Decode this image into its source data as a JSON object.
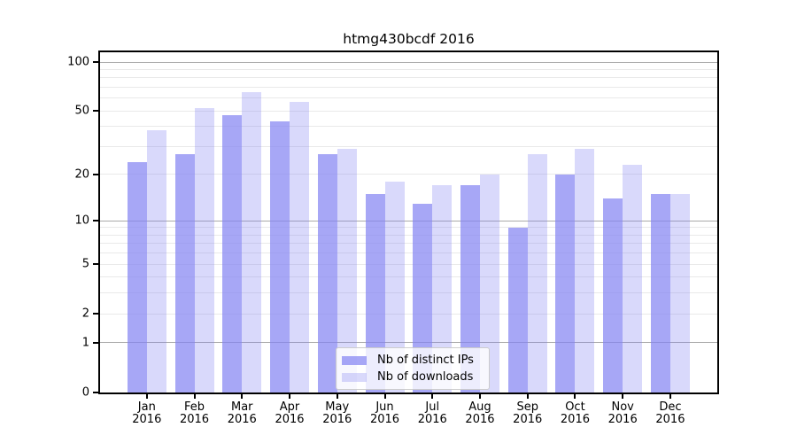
{
  "title": "htmg430bcdf 2016",
  "chart_data": {
    "type": "bar",
    "title": "htmg430bcdf 2016",
    "categories": [
      "Jan 2016",
      "Feb 2016",
      "Mar 2016",
      "Apr 2016",
      "May 2016",
      "Jun 2016",
      "Jul 2016",
      "Aug 2016",
      "Sep 2016",
      "Oct 2016",
      "Nov 2016",
      "Dec 2016"
    ],
    "series": [
      {
        "name": "Nb of distinct IPs",
        "color": "rgba(130,130,242,0.70)",
        "values": [
          24,
          27,
          47,
          43,
          27,
          15,
          13,
          17,
          9,
          20,
          14,
          15
        ]
      },
      {
        "name": "Nb of downloads",
        "color": "rgba(130,130,242,0.30)",
        "values": [
          38,
          52,
          65,
          57,
          29,
          18,
          17,
          20,
          27,
          29,
          23,
          15
        ]
      }
    ],
    "xlabel": "",
    "ylabel": "",
    "yscale": "log1p",
    "ylim": [
      0,
      115
    ],
    "yticks": [
      100,
      50,
      20,
      10,
      5,
      2,
      1,
      0
    ],
    "grid": "horizontal",
    "legend_position": "lower-center"
  },
  "colors": {
    "background": "#ffffff",
    "axis": "#000000",
    "grid_major": "#aaaaaa",
    "grid_minor": "#e9e9e9",
    "legend_bg": "rgba(255,255,255,0.8)",
    "legend_border": "#cccccc",
    "text": "#000000"
  }
}
